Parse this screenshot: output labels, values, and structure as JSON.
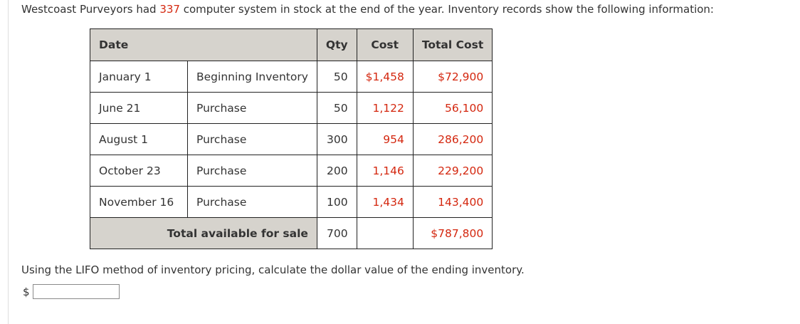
{
  "intro": {
    "before": "Westcoast Purveyors had ",
    "units": "337",
    "after": " computer system in stock at the end of the year. Inventory records show the following information:"
  },
  "table": {
    "headers": {
      "date": "Date",
      "qty": "Qty",
      "cost": "Cost",
      "total_cost": "Total Cost"
    },
    "rows": [
      {
        "date": "January 1",
        "description": "Beginning Inventory",
        "qty": "50",
        "cost": "$1,458",
        "total": "$72,900"
      },
      {
        "date": "June 21",
        "description": "Purchase",
        "qty": "50",
        "cost": "1,122",
        "total": "56,100"
      },
      {
        "date": "August 1",
        "description": "Purchase",
        "qty": "300",
        "cost": "954",
        "total": "286,200"
      },
      {
        "date": "October 23",
        "description": "Purchase",
        "qty": "200",
        "cost": "1,146",
        "total": "229,200"
      },
      {
        "date": "November 16",
        "description": "Purchase",
        "qty": "100",
        "cost": "1,434",
        "total": "143,400"
      }
    ],
    "total_row": {
      "label": "Total available for sale",
      "qty": "700",
      "total": "$787,800"
    }
  },
  "question": "Using the LIFO method of inventory pricing, calculate the dollar value of the ending inventory.",
  "answer": {
    "currency_symbol": "$",
    "value": ""
  },
  "colors": {
    "accent_red": "#d4270f",
    "header_bg": "#d6d3cd"
  }
}
